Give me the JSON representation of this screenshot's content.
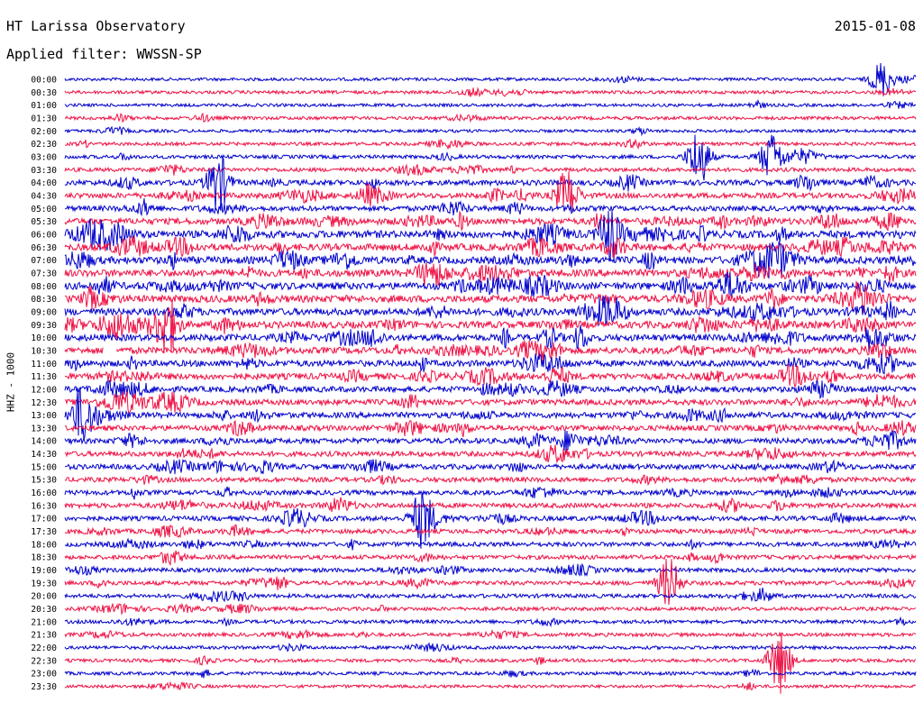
{
  "header": {
    "title": "HT Larissa Observatory",
    "date": "2015-01-08",
    "filter_label": "Applied filter: WWSSN-SP"
  },
  "chart_data": {
    "type": "line",
    "chart_kind": "helicorder",
    "ylabel": "HHZ - 1000",
    "row_labels": [
      "00:00",
      "00:30",
      "01:00",
      "01:30",
      "02:00",
      "02:30",
      "03:00",
      "03:30",
      "04:00",
      "04:30",
      "05:00",
      "05:30",
      "06:00",
      "06:30",
      "07:00",
      "07:30",
      "08:00",
      "08:30",
      "09:00",
      "09:30",
      "10:00",
      "10:30",
      "11:00",
      "11:30",
      "12:00",
      "12:30",
      "13:00",
      "13:30",
      "14:00",
      "14:30",
      "15:00",
      "15:30",
      "16:00",
      "16:30",
      "17:00",
      "17:30",
      "18:00",
      "18:30",
      "19:00",
      "19:30",
      "20:00",
      "20:30",
      "21:00",
      "21:30",
      "22:00",
      "22:30",
      "23:00",
      "23:30"
    ],
    "row_minutes": 30,
    "trace_colors": [
      "#0000cc",
      "#ee1144"
    ],
    "amplitude_relative": [
      0.15,
      0.18,
      0.15,
      0.2,
      0.15,
      0.2,
      0.25,
      0.3,
      0.55,
      0.55,
      0.5,
      0.7,
      0.9,
      0.8,
      0.85,
      0.85,
      0.85,
      0.85,
      0.8,
      0.8,
      0.75,
      0.75,
      0.7,
      0.7,
      0.6,
      0.6,
      0.6,
      0.55,
      0.55,
      0.5,
      0.5,
      0.45,
      0.45,
      0.45,
      0.45,
      0.4,
      0.4,
      0.35,
      0.35,
      0.35,
      0.3,
      0.25,
      0.25,
      0.25,
      0.2,
      0.2,
      0.2,
      0.15
    ],
    "events": [
      {
        "row": 0,
        "time_fraction": 0.96,
        "strength": 1.0
      },
      {
        "row": 6,
        "time_fraction": 0.745,
        "strength": 1.6
      },
      {
        "row": 6,
        "time_fraction": 0.83,
        "strength": 1.3
      },
      {
        "row": 8,
        "time_fraction": 0.18,
        "strength": 1.6
      },
      {
        "row": 9,
        "time_fraction": 0.59,
        "strength": 1.4
      },
      {
        "row": 12,
        "time_fraction": 0.64,
        "strength": 1.5
      },
      {
        "row": 19,
        "time_fraction": 0.12,
        "strength": 1.5
      },
      {
        "row": 26,
        "time_fraction": 0.02,
        "strength": 1.4
      },
      {
        "row": 34,
        "time_fraction": 0.42,
        "strength": 1.5
      },
      {
        "row": 39,
        "time_fraction": 0.71,
        "strength": 1.4
      },
      {
        "row": 45,
        "time_fraction": 0.84,
        "strength": 1.8
      }
    ],
    "gap": {
      "row": 21,
      "time_fraction": 0.045
    }
  }
}
